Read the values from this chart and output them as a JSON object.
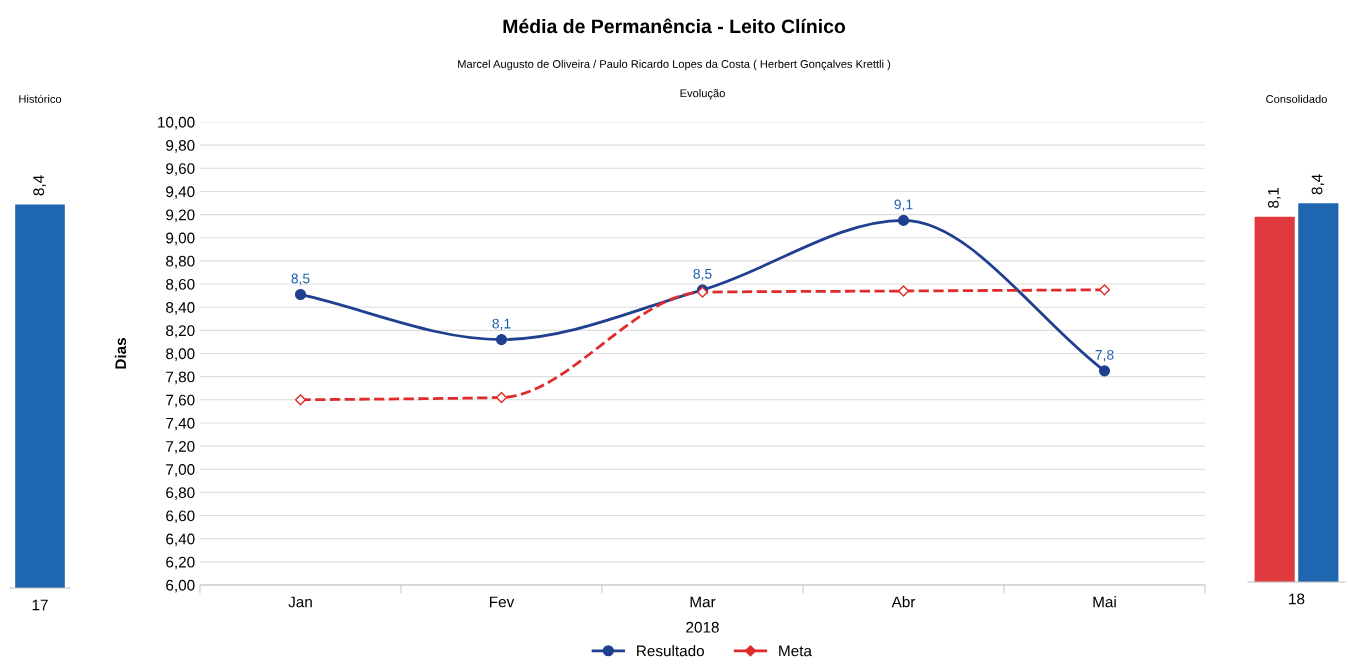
{
  "chart_data": [
    {
      "type": "bar",
      "title": "Histórico",
      "categories": [
        "17"
      ],
      "series": [
        {
          "color": "#1f66b0",
          "values": [
            8.4
          ],
          "value_labels": [
            "8,4"
          ]
        }
      ],
      "tick_labels": "x"
    },
    {
      "type": "line",
      "title": "Média de Permanência - Leito Clínico",
      "subtitle": "Marcel Augusto de Oliveira / Paulo Ricardo Lopes da Costa ( Herbert Gonçalves Krettli )",
      "annotations": [
        "Evolução"
      ],
      "xlabel": "2018",
      "ylabel": "Dias",
      "categories": [
        "Jan",
        "Fev",
        "Mar",
        "Abr",
        "Mai"
      ],
      "series": [
        {
          "name": "Resultado",
          "color": "#1f3f8f",
          "marker": "circle",
          "values": [
            8.51,
            8.12,
            8.55,
            9.15,
            7.85
          ],
          "value_labels": [
            "8,5",
            "8,1",
            "8,5",
            "9,1",
            "7,8"
          ]
        },
        {
          "name": "Meta",
          "color": "#e02b2b",
          "marker": "diamond",
          "line_style": "dashed",
          "values": [
            7.6,
            7.62,
            8.53,
            8.54,
            8.55
          ]
        }
      ],
      "ylim": [
        6,
        10
      ],
      "yticks": [
        {
          "value": 6,
          "label": "6,00"
        },
        {
          "value": 6.2,
          "label": "6,20"
        },
        {
          "value": 6.4,
          "label": "6,40"
        },
        {
          "value": 6.6,
          "label": "6,60"
        },
        {
          "value": 6.8,
          "label": "6,80"
        },
        {
          "value": 7,
          "label": "7,00"
        },
        {
          "value": 7.2,
          "label": "7,20"
        },
        {
          "value": 7.4,
          "label": "7,40"
        },
        {
          "value": 7.6,
          "label": "7,60"
        },
        {
          "value": 7.8,
          "label": "7,80"
        },
        {
          "value": 8,
          "label": "8,00"
        },
        {
          "value": 8.2,
          "label": "8,20"
        },
        {
          "value": 8.4,
          "label": "8,40"
        },
        {
          "value": 8.6,
          "label": "8,60"
        },
        {
          "value": 8.8,
          "label": "8,80"
        },
        {
          "value": 9,
          "label": "9,00"
        },
        {
          "value": 9.2,
          "label": "9,20"
        },
        {
          "value": 9.4,
          "label": "9,40"
        },
        {
          "value": 9.6,
          "label": "9,60"
        },
        {
          "value": 9.8,
          "label": "9,80"
        },
        {
          "value": 10,
          "label": "10,00"
        }
      ],
      "grid": "y",
      "legend": "bottom"
    },
    {
      "type": "bar",
      "title": "Consolidado",
      "categories": [
        "18"
      ],
      "series": [
        {
          "color": "#e03a3e",
          "values": [
            8.1
          ],
          "value_labels": [
            "8,1"
          ]
        },
        {
          "color": "#1f66b0",
          "values": [
            8.4
          ],
          "value_labels": [
            "8,4"
          ]
        }
      ],
      "tick_labels": "x"
    }
  ]
}
